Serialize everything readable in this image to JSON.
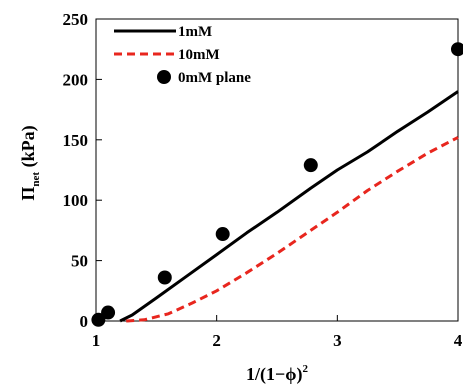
{
  "chart_data": {
    "type": "line",
    "xlabel": "1/(1−ϕ)",
    "xlabel_superscript": "2",
    "ylabel_main": "Π",
    "ylabel_subscript": "net",
    "ylabel_unit": " (kPa)",
    "xlim": [
      1,
      4
    ],
    "ylim": [
      0,
      250
    ],
    "xticks": [
      1,
      2,
      3,
      4
    ],
    "yticks": [
      0,
      50,
      100,
      150,
      200,
      250
    ],
    "legend_position": "top-left",
    "grid": false,
    "series": [
      {
        "name": "1mM",
        "style": "solid",
        "color": "#000000",
        "x": [
          1.2,
          1.3,
          1.5,
          1.75,
          2.0,
          2.25,
          2.5,
          2.78,
          3.0,
          3.25,
          3.5,
          3.75,
          4.0
        ],
        "y": [
          0,
          5,
          19,
          37,
          55,
          73,
          90,
          110,
          125,
          140,
          157,
          173,
          190
        ]
      },
      {
        "name": "10mM",
        "style": "dashed",
        "color": "#e8261e",
        "x": [
          1.25,
          1.4,
          1.6,
          1.8,
          2.0,
          2.25,
          2.5,
          2.75,
          3.0,
          3.25,
          3.5,
          3.75,
          4.0
        ],
        "y": [
          0,
          1,
          6,
          15,
          25,
          40,
          56,
          73,
          90,
          108,
          124,
          139,
          152
        ]
      },
      {
        "name": "0mM plane",
        "style": "markers",
        "color": "#000000",
        "x": [
          1.02,
          1.1,
          1.57,
          2.05,
          2.78,
          4.0
        ],
        "y": [
          1,
          7,
          36,
          72,
          129,
          225
        ]
      }
    ]
  }
}
